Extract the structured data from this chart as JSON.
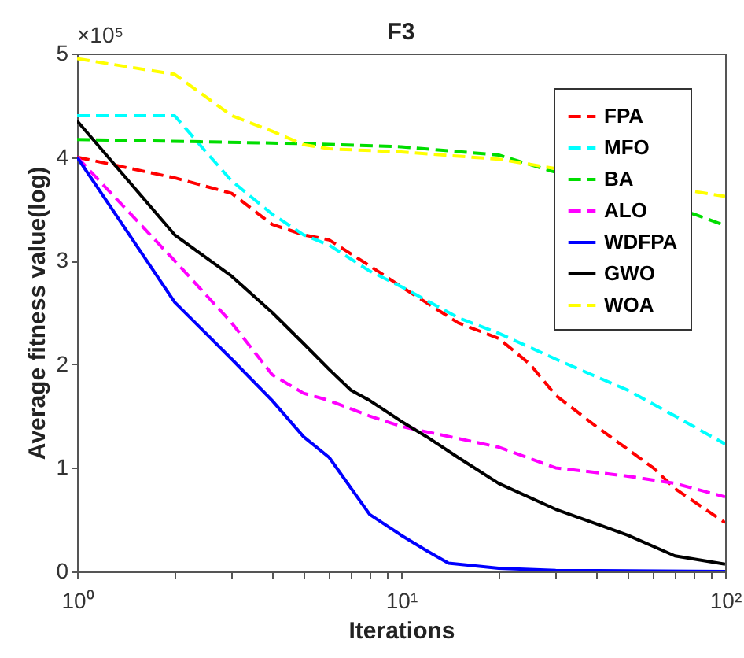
{
  "chart_data": {
    "type": "line",
    "title": "F3",
    "xlabel": "Iterations",
    "ylabel": "Average fitness value(log)",
    "log": "x",
    "legend": "top right",
    "grid": false,
    "annotations": [
      "×10⁵"
    ],
    "xlim": [
      1,
      100
    ],
    "ylim": [
      0,
      5
    ],
    "xticks": [
      {
        "value": 1,
        "label": "10⁰"
      },
      {
        "value": 2,
        "label": null
      },
      {
        "value": 3,
        "label": null
      },
      {
        "value": 4,
        "label": null
      },
      {
        "value": 5,
        "label": null
      },
      {
        "value": 6,
        "label": null
      },
      {
        "value": 7,
        "label": null
      },
      {
        "value": 8,
        "label": null
      },
      {
        "value": 9,
        "label": null
      },
      {
        "value": 10,
        "label": "10¹"
      },
      {
        "value": 20,
        "label": null
      },
      {
        "value": 30,
        "label": null
      },
      {
        "value": 40,
        "label": null
      },
      {
        "value": 50,
        "label": null
      },
      {
        "value": 60,
        "label": null
      },
      {
        "value": 70,
        "label": null
      },
      {
        "value": 80,
        "label": null
      },
      {
        "value": 90,
        "label": null
      },
      {
        "value": 100,
        "label": "10²"
      }
    ],
    "yticks": [
      0,
      1,
      2,
      3,
      4,
      5
    ],
    "series": [
      {
        "name": "FPA",
        "color": "#ff0000",
        "line_style": "dashed",
        "x": [
          1,
          2,
          3,
          4,
          5,
          6,
          8,
          10,
          15,
          20,
          25,
          30,
          40,
          60,
          70,
          100
        ],
        "values": [
          4.0,
          3.8,
          3.65,
          3.35,
          3.25,
          3.2,
          2.95,
          2.75,
          2.4,
          2.25,
          2.0,
          1.7,
          1.4,
          1.0,
          0.8,
          0.47
        ]
      },
      {
        "name": "MFO",
        "color": "#00ffff",
        "line_style": "dashed",
        "x": [
          1,
          2,
          2.5,
          3,
          4,
          5,
          6,
          8,
          10,
          15,
          20,
          30,
          50,
          70,
          100
        ],
        "values": [
          4.4,
          4.4,
          4.05,
          3.77,
          3.45,
          3.25,
          3.15,
          2.9,
          2.75,
          2.45,
          2.3,
          2.05,
          1.75,
          1.5,
          1.23
        ]
      },
      {
        "name": "BA",
        "color": "#00dd00",
        "line_style": "dashed",
        "x": [
          1,
          5,
          10,
          20,
          80,
          100
        ],
        "values": [
          4.17,
          4.13,
          4.1,
          4.02,
          3.45,
          3.34
        ]
      },
      {
        "name": "ALO",
        "color": "#ff00ff",
        "line_style": "dashed",
        "x": [
          1,
          2,
          3,
          4,
          5,
          6,
          8,
          10,
          20,
          30,
          50,
          70,
          100
        ],
        "values": [
          4.0,
          3.0,
          2.4,
          1.9,
          1.72,
          1.65,
          1.5,
          1.4,
          1.2,
          1.0,
          0.92,
          0.85,
          0.72
        ]
      },
      {
        "name": "WDFPA",
        "color": "#0000ff",
        "line_style": "solid",
        "x": [
          1,
          2,
          3,
          4,
          5,
          6,
          8,
          10,
          12,
          14,
          20,
          30,
          100
        ],
        "values": [
          4.0,
          2.6,
          2.05,
          1.65,
          1.3,
          1.1,
          0.55,
          0.35,
          0.2,
          0.08,
          0.03,
          0.01,
          0.0
        ]
      },
      {
        "name": "GWO",
        "color": "#000000",
        "line_style": "solid",
        "x": [
          1,
          2,
          3,
          4,
          5,
          6,
          7,
          8,
          10,
          12,
          15,
          20,
          30,
          50,
          70,
          100
        ],
        "values": [
          4.35,
          3.25,
          2.85,
          2.5,
          2.2,
          1.95,
          1.75,
          1.65,
          1.45,
          1.3,
          1.1,
          0.85,
          0.6,
          0.35,
          0.15,
          0.07
        ]
      },
      {
        "name": "WOA",
        "color": "#ffff00",
        "line_style": "dashed",
        "x": [
          1,
          2,
          3,
          4,
          5,
          6,
          10,
          20,
          100
        ],
        "values": [
          4.95,
          4.8,
          4.4,
          4.25,
          4.12,
          4.08,
          4.05,
          3.98,
          3.62
        ]
      }
    ]
  }
}
